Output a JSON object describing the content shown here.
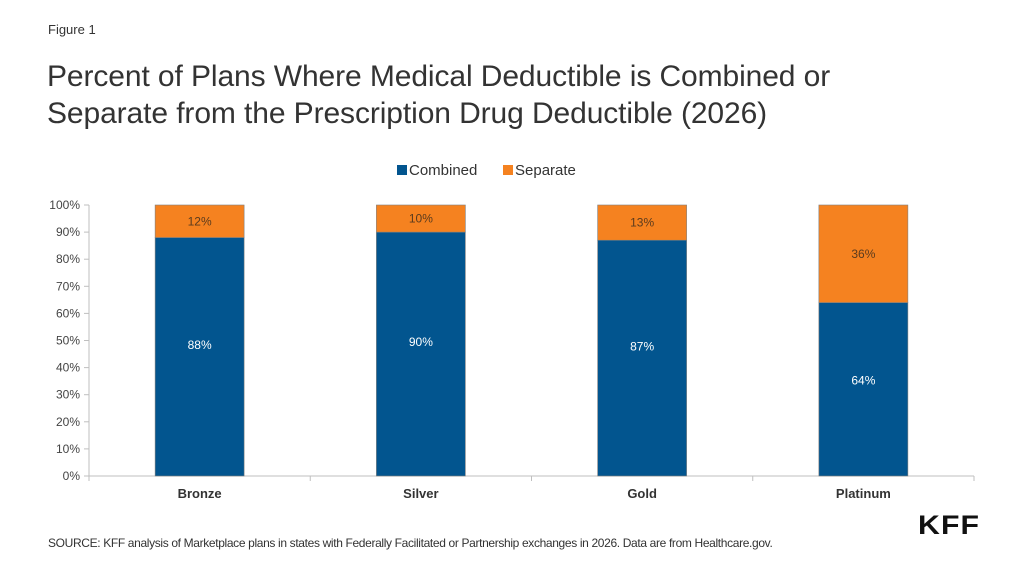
{
  "figure_label": "Figure 1",
  "title_lines": [
    "Percent of Plans Where Medical Deductible is Combined or",
    "Separate from the Prescription Drug Deductible (2026)"
  ],
  "source": "SOURCE: KFF analysis of Marketplace plans in states with Federally Facilitated or Partnership exchanges in 2026. Data are from Healthcare.gov.",
  "logo": "KFF",
  "colors": {
    "combined": "#02558f",
    "separate": "#f58220",
    "combined_label": "#ffffff",
    "separate_label": "#5a3b1e"
  },
  "chart_data": {
    "type": "bar",
    "stacked": true,
    "title": "Percent of Plans Where Medical Deductible is Combined or Separate from the Prescription Drug Deductible (2026)",
    "categories": [
      "Bronze",
      "Silver",
      "Gold",
      "Platinum"
    ],
    "series": [
      {
        "name": "Combined",
        "values": [
          88,
          90,
          87,
          64
        ],
        "labels": [
          "88%",
          "90%",
          "87%",
          "64%"
        ]
      },
      {
        "name": "Separate",
        "values": [
          12,
          10,
          13,
          36
        ],
        "labels": [
          "12%",
          "10%",
          "13%",
          "36%"
        ]
      }
    ],
    "xlabel": "",
    "ylabel": "",
    "ylim": [
      0,
      100
    ],
    "yticks": [
      "0%",
      "10%",
      "20%",
      "30%",
      "40%",
      "50%",
      "60%",
      "70%",
      "80%",
      "90%",
      "100%"
    ],
    "grid": false,
    "legend": "top-center"
  }
}
